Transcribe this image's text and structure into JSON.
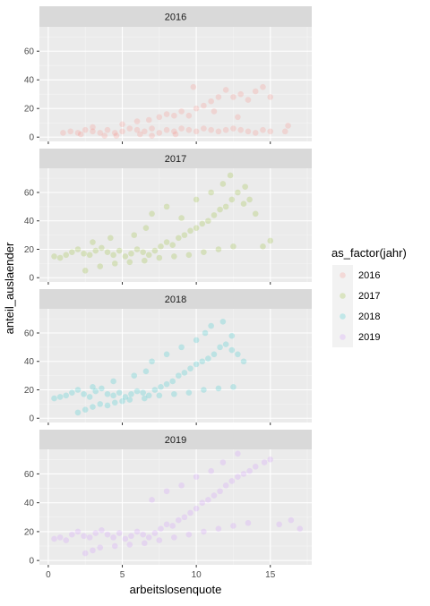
{
  "chart_data": {
    "type": "scatter",
    "title": "",
    "xlabel": "arbeitslosenquote",
    "ylabel": "anteil_auslaender",
    "xlim": [
      -0.6,
      17.8
    ],
    "ylim": [
      -3,
      77
    ],
    "x_ticks": [
      0,
      5,
      10,
      15
    ],
    "x_tick_labels": [
      "0",
      "5",
      "10",
      "15"
    ],
    "y_ticks": [
      0,
      20,
      40,
      60
    ],
    "y_tick_labels": [
      "0",
      "20",
      "40",
      "60"
    ],
    "grid": true,
    "facets": [
      "2016",
      "2017",
      "2018",
      "2019"
    ],
    "legend": {
      "title": "as_factor(jahr)",
      "position": "right",
      "entries": [
        {
          "label": "2016",
          "color": "#F8766D"
        },
        {
          "label": "2017",
          "color": "#7CAE00"
        },
        {
          "label": "2018",
          "color": "#00BFC4"
        },
        {
          "label": "2019",
          "color": "#C77CFF"
        }
      ]
    },
    "series": [
      {
        "facet": "2016",
        "color": "#F8766D",
        "points": [
          [
            1.0,
            3
          ],
          [
            1.5,
            4
          ],
          [
            2.0,
            3
          ],
          [
            2.5,
            5
          ],
          [
            3.0,
            4
          ],
          [
            3.5,
            3
          ],
          [
            4.0,
            5
          ],
          [
            4.5,
            3
          ],
          [
            5.0,
            4
          ],
          [
            5.5,
            6
          ],
          [
            6.0,
            5
          ],
          [
            6.5,
            4
          ],
          [
            7.0,
            6
          ],
          [
            7.5,
            3
          ],
          [
            8.0,
            5
          ],
          [
            8.5,
            4
          ],
          [
            9.0,
            6
          ],
          [
            9.5,
            5
          ],
          [
            10.0,
            4
          ],
          [
            10.5,
            6
          ],
          [
            11.0,
            5
          ],
          [
            11.5,
            4
          ],
          [
            12.0,
            5
          ],
          [
            12.5,
            6
          ],
          [
            13.0,
            5
          ],
          [
            13.5,
            4
          ],
          [
            14.0,
            3
          ],
          [
            14.5,
            5
          ],
          [
            15.0,
            4
          ],
          [
            16.0,
            4
          ],
          [
            2.2,
            2
          ],
          [
            3.8,
            1
          ],
          [
            4.6,
            1
          ],
          [
            6.2,
            2
          ],
          [
            7.0,
            1
          ],
          [
            8.6,
            2
          ],
          [
            3.0,
            7
          ],
          [
            5.0,
            9
          ],
          [
            6.0,
            11
          ],
          [
            6.8,
            12
          ],
          [
            7.5,
            14
          ],
          [
            8.0,
            16
          ],
          [
            8.5,
            15
          ],
          [
            9.0,
            18
          ],
          [
            9.5,
            15
          ],
          [
            10.0,
            20
          ],
          [
            10.5,
            22
          ],
          [
            11.0,
            25
          ],
          [
            11.5,
            28
          ],
          [
            12.0,
            33
          ],
          [
            12.5,
            28
          ],
          [
            13.0,
            30
          ],
          [
            13.5,
            26
          ],
          [
            14.0,
            32
          ],
          [
            14.5,
            35
          ],
          [
            15.0,
            28
          ],
          [
            9.8,
            35
          ],
          [
            11.2,
            18
          ],
          [
            12.8,
            14
          ],
          [
            16.2,
            8
          ]
        ]
      },
      {
        "facet": "2017",
        "color": "#7CAE00",
        "points": [
          [
            0.4,
            15
          ],
          [
            0.8,
            14
          ],
          [
            1.2,
            16
          ],
          [
            1.6,
            18
          ],
          [
            2.0,
            20
          ],
          [
            2.4,
            17
          ],
          [
            2.8,
            16
          ],
          [
            3.2,
            19
          ],
          [
            3.6,
            21
          ],
          [
            4.0,
            18
          ],
          [
            4.4,
            16
          ],
          [
            4.8,
            19
          ],
          [
            5.2,
            15
          ],
          [
            5.6,
            17
          ],
          [
            6.0,
            20
          ],
          [
            6.4,
            18
          ],
          [
            6.8,
            16
          ],
          [
            7.2,
            19
          ],
          [
            7.6,
            22
          ],
          [
            8.0,
            25
          ],
          [
            8.4,
            23
          ],
          [
            8.8,
            28
          ],
          [
            9.2,
            30
          ],
          [
            9.6,
            33
          ],
          [
            10.0,
            35
          ],
          [
            10.4,
            38
          ],
          [
            10.8,
            40
          ],
          [
            11.2,
            44
          ],
          [
            11.6,
            48
          ],
          [
            12.0,
            50
          ],
          [
            12.4,
            55
          ],
          [
            12.8,
            60
          ],
          [
            13.2,
            52
          ],
          [
            13.6,
            55
          ],
          [
            14.0,
            45
          ],
          [
            14.5,
            22
          ],
          [
            15.0,
            26
          ],
          [
            2.5,
            5
          ],
          [
            3.5,
            8
          ],
          [
            4.5,
            10
          ],
          [
            5.5,
            11
          ],
          [
            6.5,
            12
          ],
          [
            7.5,
            14
          ],
          [
            8.5,
            15
          ],
          [
            9.5,
            16
          ],
          [
            10.5,
            18
          ],
          [
            11.5,
            20
          ],
          [
            12.5,
            22
          ],
          [
            7.0,
            45
          ],
          [
            8.0,
            50
          ],
          [
            9.0,
            42
          ],
          [
            10.0,
            55
          ],
          [
            11.0,
            60
          ],
          [
            11.8,
            66
          ],
          [
            12.3,
            72
          ],
          [
            13.3,
            64
          ],
          [
            3.0,
            25
          ],
          [
            4.2,
            28
          ],
          [
            5.8,
            30
          ],
          [
            6.6,
            35
          ]
        ]
      },
      {
        "facet": "2018",
        "color": "#00BFC4",
        "points": [
          [
            0.4,
            14
          ],
          [
            0.8,
            15
          ],
          [
            1.2,
            16
          ],
          [
            1.6,
            18
          ],
          [
            2.0,
            20
          ],
          [
            2.4,
            17
          ],
          [
            2.8,
            15
          ],
          [
            3.2,
            19
          ],
          [
            3.6,
            21
          ],
          [
            4.0,
            17
          ],
          [
            4.4,
            16
          ],
          [
            4.8,
            18
          ],
          [
            5.2,
            15
          ],
          [
            5.6,
            17
          ],
          [
            6.0,
            19
          ],
          [
            6.4,
            18
          ],
          [
            6.8,
            16
          ],
          [
            7.2,
            20
          ],
          [
            7.6,
            22
          ],
          [
            8.0,
            24
          ],
          [
            8.4,
            26
          ],
          [
            8.8,
            30
          ],
          [
            9.2,
            32
          ],
          [
            9.6,
            35
          ],
          [
            10.0,
            38
          ],
          [
            10.4,
            40
          ],
          [
            10.8,
            42
          ],
          [
            11.2,
            45
          ],
          [
            11.6,
            50
          ],
          [
            12.0,
            52
          ],
          [
            12.4,
            48
          ],
          [
            12.8,
            45
          ],
          [
            13.2,
            40
          ],
          [
            2.0,
            4
          ],
          [
            2.5,
            6
          ],
          [
            3.0,
            8
          ],
          [
            3.5,
            10
          ],
          [
            4.0,
            9
          ],
          [
            4.5,
            11
          ],
          [
            5.0,
            12
          ],
          [
            5.5,
            13
          ],
          [
            6.5,
            14
          ],
          [
            7.5,
            16
          ],
          [
            8.5,
            17
          ],
          [
            9.5,
            18
          ],
          [
            10.5,
            20
          ],
          [
            11.5,
            21
          ],
          [
            12.5,
            22
          ],
          [
            7.0,
            40
          ],
          [
            8.0,
            45
          ],
          [
            9.0,
            50
          ],
          [
            10.0,
            55
          ],
          [
            10.6,
            60
          ],
          [
            11.0,
            65
          ],
          [
            11.8,
            68
          ],
          [
            12.4,
            58
          ],
          [
            3.0,
            22
          ],
          [
            4.4,
            26
          ],
          [
            5.8,
            30
          ],
          [
            6.6,
            33
          ]
        ]
      },
      {
        "facet": "2019",
        "color": "#C77CFF",
        "points": [
          [
            0.4,
            15
          ],
          [
            0.8,
            16
          ],
          [
            1.2,
            14
          ],
          [
            1.6,
            18
          ],
          [
            2.0,
            20
          ],
          [
            2.4,
            17
          ],
          [
            2.8,
            16
          ],
          [
            3.2,
            19
          ],
          [
            3.6,
            21
          ],
          [
            4.0,
            18
          ],
          [
            4.4,
            16
          ],
          [
            4.8,
            19
          ],
          [
            5.2,
            15
          ],
          [
            5.6,
            17
          ],
          [
            6.0,
            20
          ],
          [
            6.4,
            18
          ],
          [
            6.8,
            16
          ],
          [
            7.2,
            19
          ],
          [
            7.6,
            22
          ],
          [
            8.0,
            25
          ],
          [
            8.4,
            24
          ],
          [
            8.8,
            28
          ],
          [
            9.2,
            30
          ],
          [
            9.6,
            33
          ],
          [
            10.0,
            36
          ],
          [
            10.4,
            40
          ],
          [
            10.8,
            42
          ],
          [
            11.2,
            45
          ],
          [
            11.6,
            48
          ],
          [
            12.0,
            52
          ],
          [
            12.4,
            55
          ],
          [
            12.8,
            58
          ],
          [
            13.2,
            60
          ],
          [
            13.6,
            62
          ],
          [
            14.0,
            65
          ],
          [
            14.6,
            68
          ],
          [
            15.0,
            70
          ],
          [
            15.6,
            25
          ],
          [
            16.4,
            28
          ],
          [
            17.0,
            22
          ],
          [
            2.5,
            5
          ],
          [
            3.0,
            7
          ],
          [
            3.5,
            9
          ],
          [
            4.5,
            10
          ],
          [
            5.5,
            11
          ],
          [
            6.5,
            12
          ],
          [
            7.5,
            14
          ],
          [
            8.5,
            16
          ],
          [
            9.5,
            18
          ],
          [
            10.5,
            20
          ],
          [
            11.5,
            22
          ],
          [
            12.5,
            24
          ],
          [
            13.5,
            26
          ],
          [
            7.0,
            42
          ],
          [
            8.0,
            48
          ],
          [
            9.0,
            52
          ],
          [
            10.0,
            58
          ],
          [
            11.0,
            62
          ],
          [
            11.8,
            68
          ],
          [
            12.8,
            74
          ]
        ]
      }
    ]
  }
}
